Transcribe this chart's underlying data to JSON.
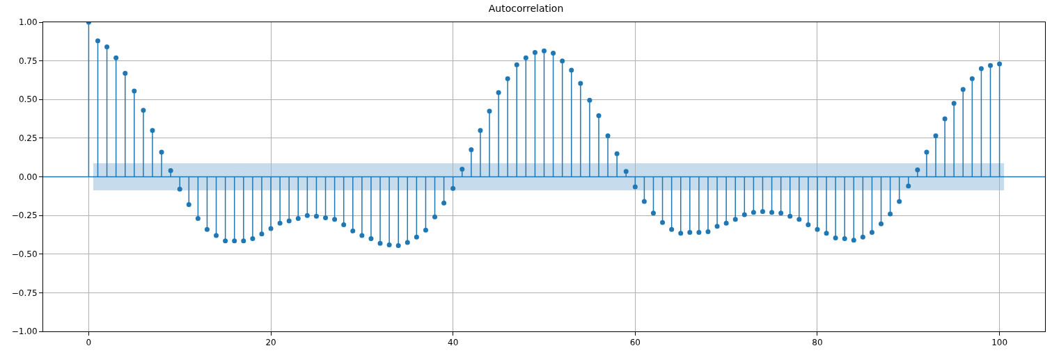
{
  "chart_data": {
    "type": "lollipop",
    "title": "Autocorrelation",
    "x": [
      0,
      1,
      2,
      3,
      4,
      5,
      6,
      7,
      8,
      9,
      10,
      11,
      12,
      13,
      14,
      15,
      16,
      17,
      18,
      19,
      20,
      21,
      22,
      23,
      24,
      25,
      26,
      27,
      28,
      29,
      30,
      31,
      32,
      33,
      34,
      35,
      36,
      37,
      38,
      39,
      40,
      41,
      42,
      43,
      44,
      45,
      46,
      47,
      48,
      49,
      50,
      51,
      52,
      53,
      54,
      55,
      56,
      57,
      58,
      59,
      60,
      61,
      62,
      63,
      64,
      65,
      66,
      67,
      68,
      69,
      70,
      71,
      72,
      73,
      74,
      75,
      76,
      77,
      78,
      79,
      80,
      81,
      82,
      83,
      84,
      85,
      86,
      87,
      88,
      89,
      90,
      91,
      92,
      93,
      94,
      95,
      96,
      97,
      98,
      99,
      100
    ],
    "series": [
      {
        "color": "#1f77b4",
        "values": [
          1.0,
          0.88,
          0.84,
          0.77,
          0.67,
          0.555,
          0.43,
          0.3,
          0.16,
          0.04,
          -0.08,
          -0.18,
          -0.27,
          -0.34,
          -0.38,
          -0.415,
          -0.415,
          -0.415,
          -0.4,
          -0.37,
          -0.335,
          -0.3,
          -0.285,
          -0.27,
          -0.25,
          -0.255,
          -0.265,
          -0.275,
          -0.31,
          -0.35,
          -0.38,
          -0.4,
          -0.43,
          -0.44,
          -0.445,
          -0.425,
          -0.39,
          -0.345,
          -0.26,
          -0.17,
          -0.075,
          0.05,
          0.175,
          0.3,
          0.425,
          0.545,
          0.635,
          0.725,
          0.77,
          0.805,
          0.815,
          0.8,
          0.75,
          0.69,
          0.605,
          0.495,
          0.395,
          0.265,
          0.15,
          0.035,
          -0.065,
          -0.16,
          -0.235,
          -0.295,
          -0.34,
          -0.365,
          -0.36,
          -0.36,
          -0.355,
          -0.32,
          -0.3,
          -0.275,
          -0.245,
          -0.23,
          -0.225,
          -0.23,
          -0.235,
          -0.255,
          -0.275,
          -0.31,
          -0.34,
          -0.365,
          -0.395,
          -0.4,
          -0.41,
          -0.39,
          -0.36,
          -0.305,
          -0.24,
          -0.16,
          -0.06,
          0.045,
          0.16,
          0.265,
          0.375,
          0.475,
          0.565,
          0.635,
          0.7,
          0.72,
          0.73
        ]
      }
    ],
    "xlim": [
      -5,
      105
    ],
    "xticks": [
      0,
      20,
      40,
      60,
      80,
      100
    ],
    "ylim": [
      -1,
      1
    ],
    "yticks": [
      {
        "value": -1,
        "label": "−1.00"
      },
      {
        "value": -0.75,
        "label": "−0.75"
      },
      {
        "value": -0.5,
        "label": "−0.50"
      },
      {
        "value": -0.25,
        "label": "−0.25"
      },
      {
        "value": 0,
        "label": "0.00"
      },
      {
        "value": 0.25,
        "label": "0.25"
      },
      {
        "value": 0.5,
        "label": "0.50"
      },
      {
        "value": 0.75,
        "label": "0.75"
      },
      {
        "value": 1,
        "label": "1.00"
      }
    ],
    "ref_lines": [
      {
        "axis": "y",
        "value": 0,
        "color": "#1f77b4"
      }
    ],
    "bands": [
      {
        "axis": "y",
        "from": -0.088,
        "to": 0.088,
        "color": "#c6dbeb"
      }
    ],
    "grid": true,
    "marker": "circle"
  }
}
